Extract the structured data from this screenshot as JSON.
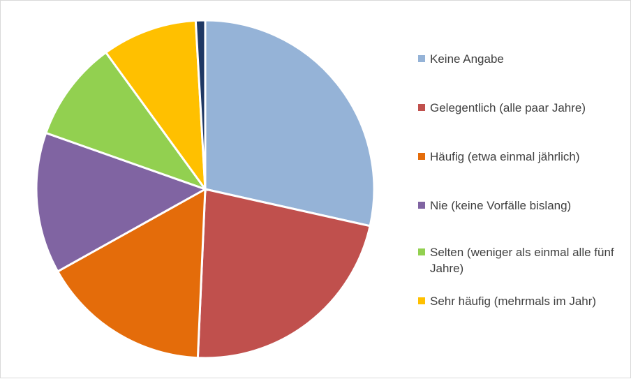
{
  "chart_data": {
    "type": "pie",
    "title": "",
    "legend_position": "right",
    "categories": [
      "Keine Angabe",
      "Gelegentlich (alle paar Jahre)",
      "Häufig (etwa einmal jährlich)",
      "Nie (keine Vorfälle bislang)",
      "Selten (weniger als einmal alle fünf Jahre)",
      "Sehr häufig (mehrmals im Jahr)",
      ""
    ],
    "values": [
      28.5,
      22.2,
      16.2,
      13.5,
      9.6,
      9.1,
      0.9
    ],
    "colors": [
      "#95b3d7",
      "#c0504d",
      "#e46c0a",
      "#8064a2",
      "#92d050",
      "#ffc000",
      "#1f3864"
    ]
  }
}
